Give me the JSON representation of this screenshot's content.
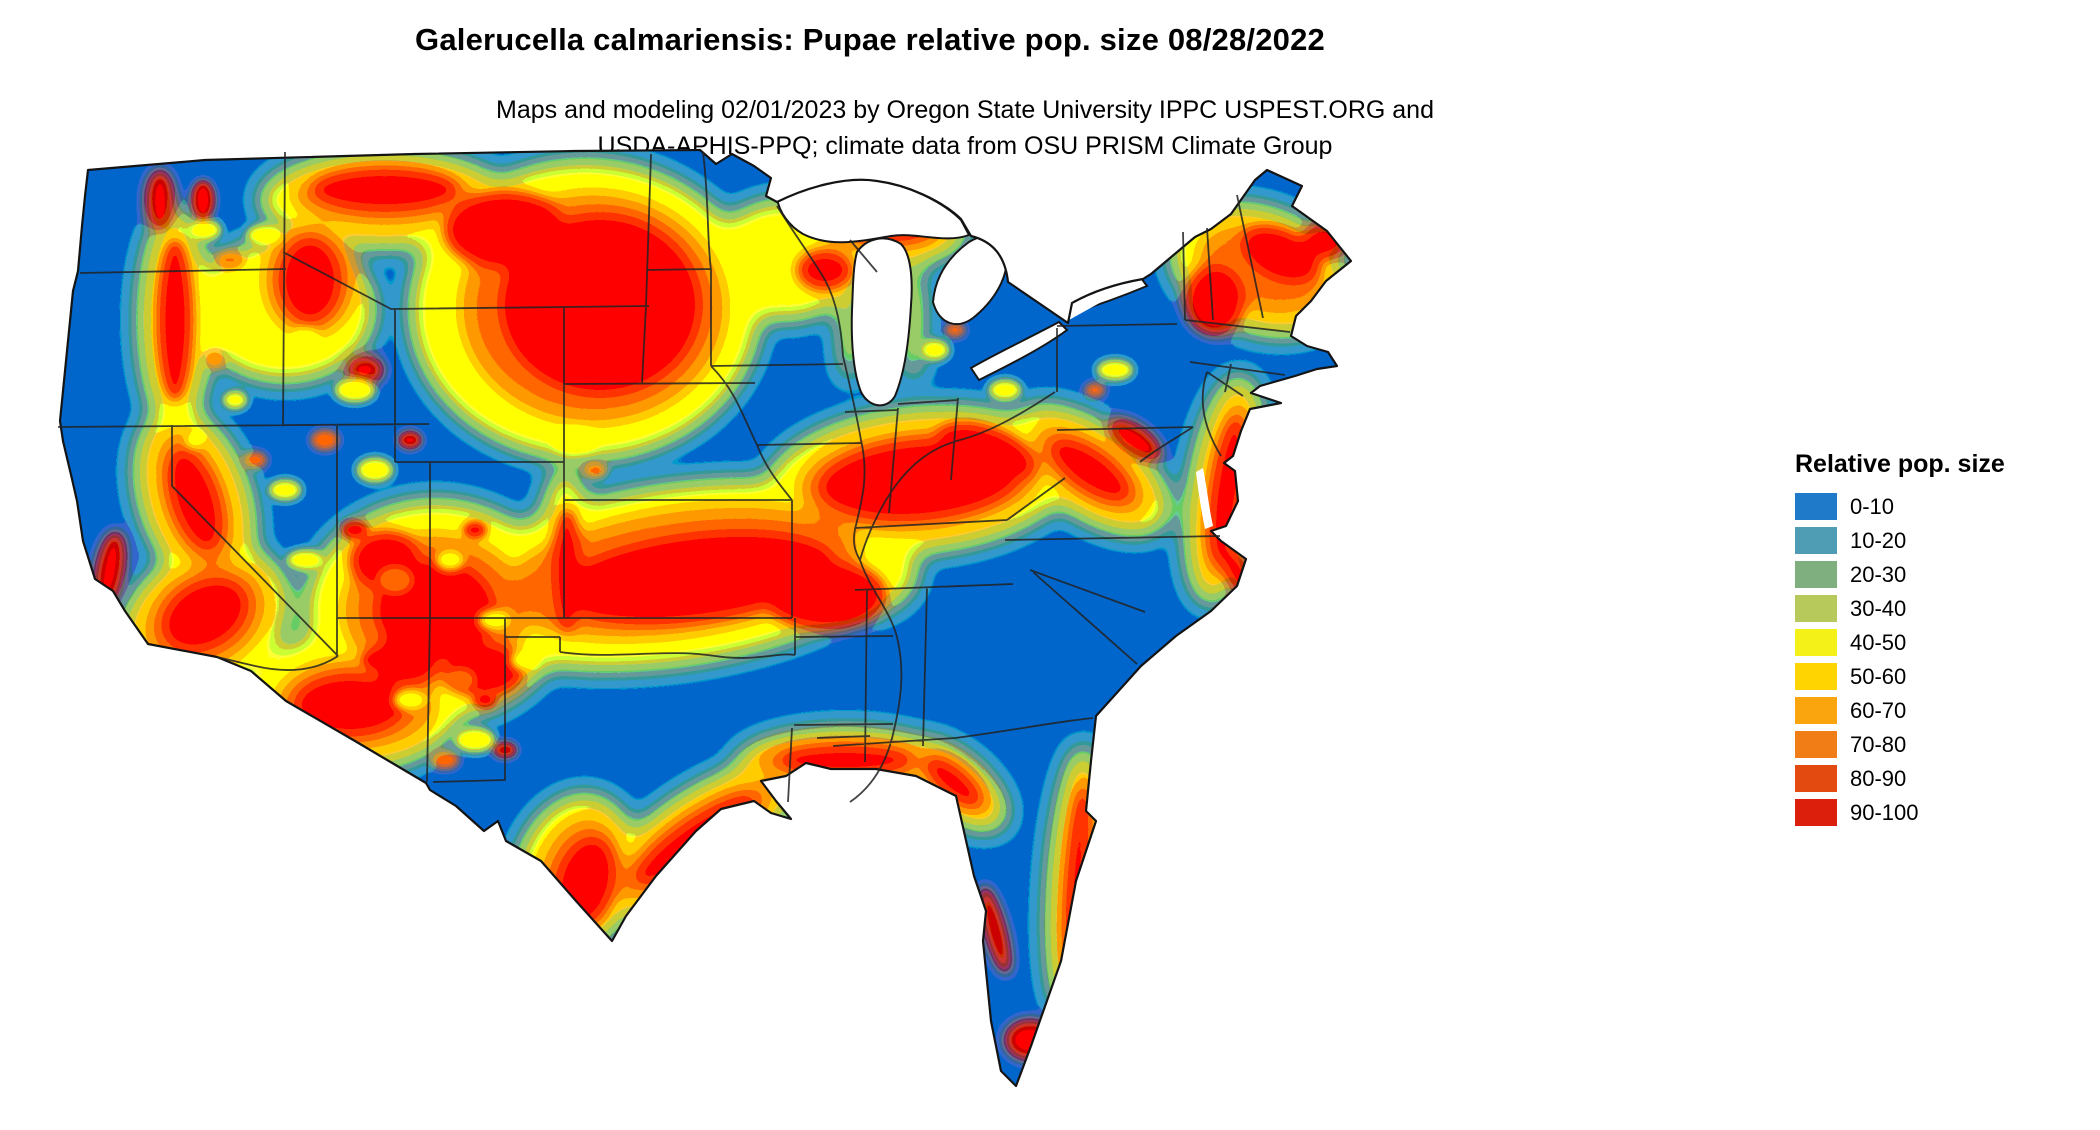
{
  "header": {
    "title": "Galerucella calmariensis: Pupae relative pop. size 08/28/2022",
    "subtitle_line1": "Maps and modeling 02/01/2023 by Oregon State University IPPC USPEST.ORG and",
    "subtitle_line2": "USDA-APHIS-PPQ; climate data from OSU PRISM Climate Group"
  },
  "legend": {
    "title": "Relative pop. size",
    "entries": [
      {
        "label": "0-10",
        "color": "#1F7BC9"
      },
      {
        "label": "10-20",
        "color": "#4E9DB4"
      },
      {
        "label": "20-30",
        "color": "#7FAF7E"
      },
      {
        "label": "30-40",
        "color": "#B7C95B"
      },
      {
        "label": "40-50",
        "color": "#F4F118"
      },
      {
        "label": "50-60",
        "color": "#FFD400"
      },
      {
        "label": "60-70",
        "color": "#FBA50E"
      },
      {
        "label": "70-80",
        "color": "#F07D15"
      },
      {
        "label": "80-90",
        "color": "#E34A10"
      },
      {
        "label": "90-100",
        "color": "#DC1F0C"
      }
    ]
  },
  "chart_data": {
    "type": "heatmap",
    "title": "Galerucella calmariensis: Pupae relative pop. size 08/28/2022",
    "species": "Galerucella calmariensis",
    "life_stage": "Pupae",
    "map_date": "08/28/2022",
    "model_run_date": "02/01/2023",
    "depicted_region": "Conterminous United States with state borders and Great Lakes",
    "legend_title": "Relative pop. size",
    "classes": [
      "0-10",
      "10-20",
      "20-30",
      "30-40",
      "40-50",
      "50-60",
      "60-70",
      "70-80",
      "80-90",
      "90-100"
    ],
    "class_colors": [
      "#1F7BC9",
      "#4E9DB4",
      "#7FAF7E",
      "#B7C95B",
      "#F4F118",
      "#FFD400",
      "#FBA50E",
      "#F07D15",
      "#E34A10",
      "#DC1F0C"
    ],
    "legend_position": "right",
    "background_class": "0-10",
    "high_value_regions": "Dakotas/eastern Montana/western Minnesota, Kentucky-Tennessee-Ohio valley, Oklahoma-Texas band, Gulf coast strip, Atlantic coast strip, New England uplands, Sierra/coastal California, Four Corners and Arizona mottling, Florida coastal fringe"
  }
}
